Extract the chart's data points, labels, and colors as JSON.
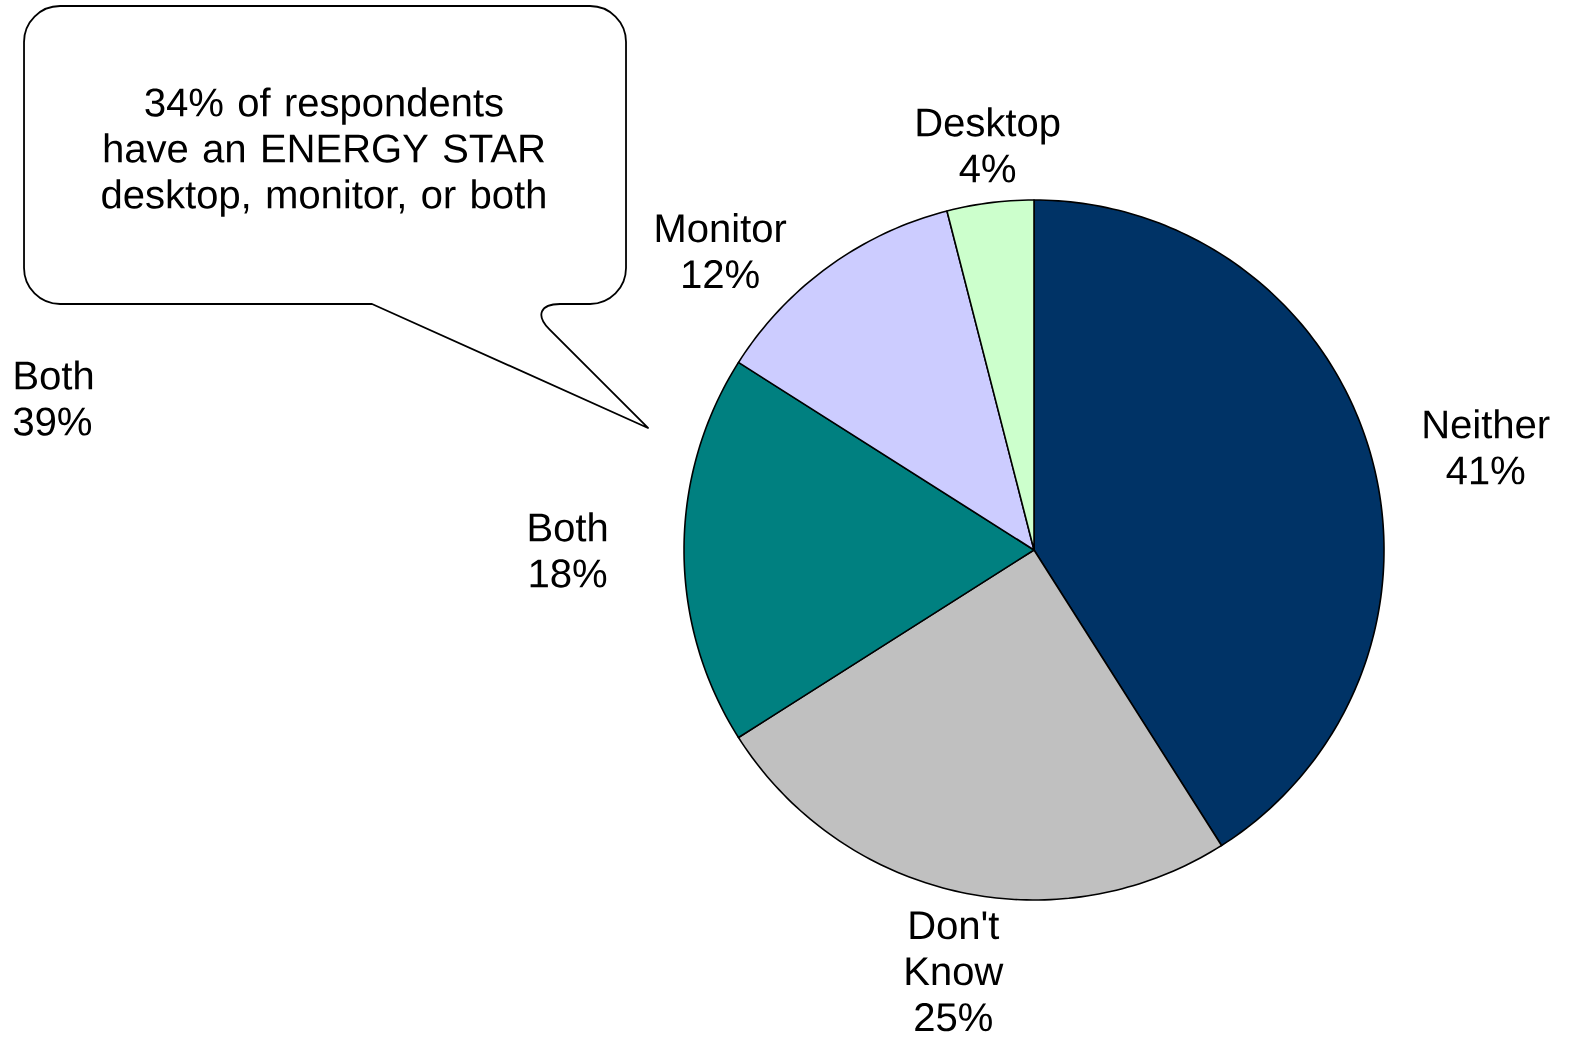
{
  "chart_data": {
    "type": "pie",
    "categories": [
      "Neither",
      "Don't Know",
      "Both",
      "Monitor",
      "Desktop"
    ],
    "values": [
      41,
      25,
      18,
      12,
      4
    ],
    "value_labels": [
      "41%",
      "25%",
      "18%",
      "12%",
      "4%"
    ],
    "colors": [
      "#003366",
      "#c0c0c0",
      "#008080",
      "#ccccff",
      "#ccffcc"
    ],
    "annotations": [
      "34% of respondents have an ENERGY STAR desktop, monitor, or both",
      "Both 39%"
    ]
  }
}
